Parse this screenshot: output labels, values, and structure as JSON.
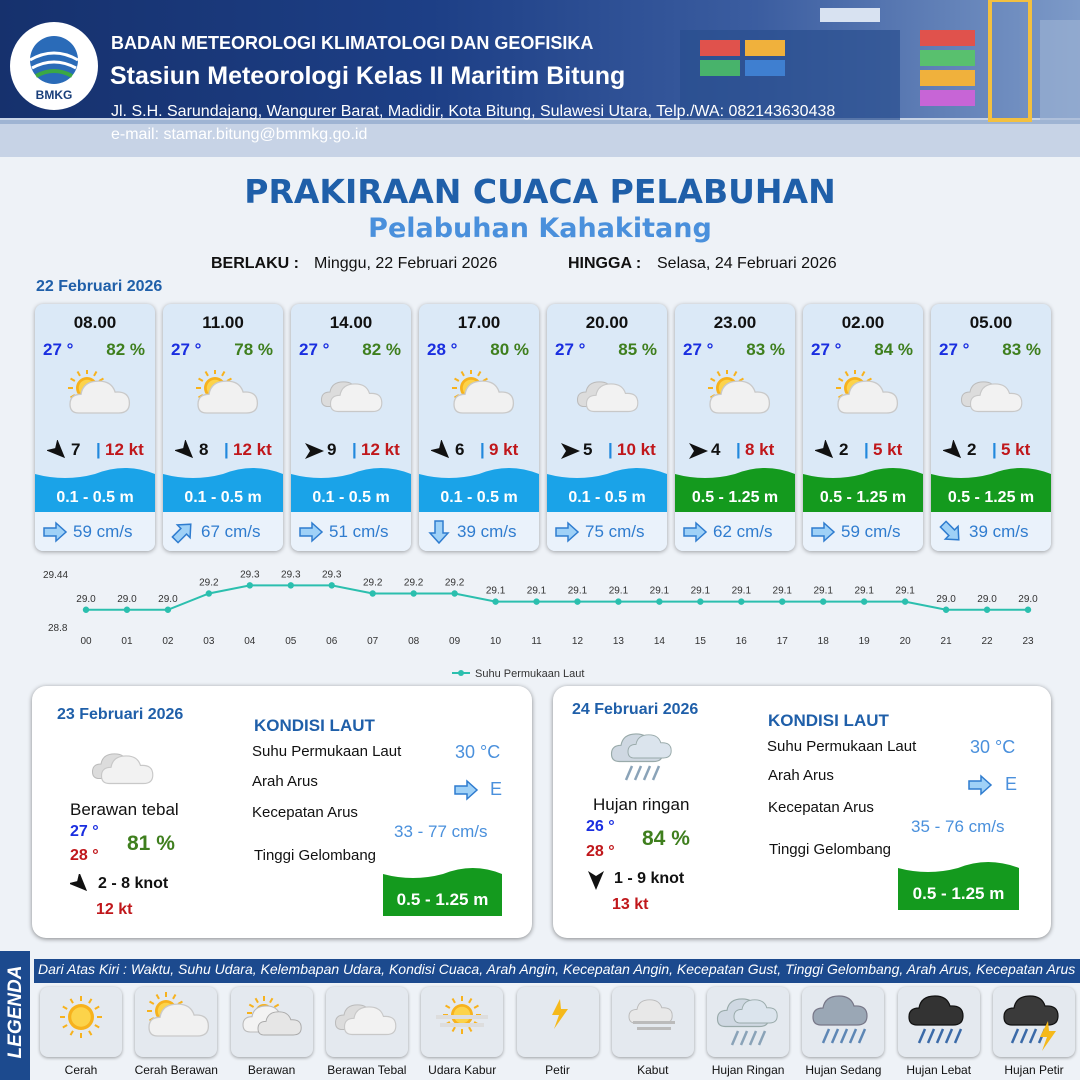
{
  "header": {
    "org": "BADAN METEOROLOGI KLIMATOLOGI DAN GEOFISIKA",
    "station": "Stasiun Meteorologi Kelas II Maritim Bitung",
    "address": "Jl. S.H. Sarundajang, Wangurer Barat, Madidir, Kota Bitung, Sulawesi Utara, Telp./WA: 082143630438",
    "email": "e-mail: stamar.bitung@bmmkg.go.id",
    "logo_text": "BMKG"
  },
  "title": "PRAKIRAAN CUACA PELABUHAN",
  "subtitle": "Pelabuhan Kahakitang",
  "validity": {
    "from_label": "BERLAKU :",
    "from_value": "Minggu, 22 Februari 2026",
    "to_label": "HINGGA :",
    "to_value": "Selasa, 24 Februari 2026"
  },
  "day1_label": "22 Februari 2026",
  "forecasts": [
    {
      "time": "08.00",
      "temp": "27 °",
      "rh": "82 %",
      "cond": "cerah-berawan",
      "wdir": "NW",
      "wspeed": "7",
      "gust": "12 kt",
      "wave": "0.1 - 0.5 m",
      "wave_level": "low",
      "cdir": "E",
      "cspeed": "59 cm/s"
    },
    {
      "time": "11.00",
      "temp": "27 °",
      "rh": "78 %",
      "cond": "cerah-berawan",
      "wdir": "NW",
      "wspeed": "8",
      "gust": "12 kt",
      "wave": "0.1 - 0.5 m",
      "wave_level": "low",
      "cdir": "NE",
      "cspeed": "67 cm/s"
    },
    {
      "time": "14.00",
      "temp": "27 °",
      "rh": "82 %",
      "cond": "berawan-tebal",
      "wdir": "W",
      "wspeed": "9",
      "gust": "12 kt",
      "wave": "0.1 - 0.5 m",
      "wave_level": "low",
      "cdir": "E",
      "cspeed": "51 cm/s"
    },
    {
      "time": "17.00",
      "temp": "28 °",
      "rh": "80 %",
      "cond": "cerah-berawan",
      "wdir": "NW",
      "wspeed": "6",
      "gust": "9 kt",
      "wave": "0.1 - 0.5 m",
      "wave_level": "low",
      "cdir": "S",
      "cspeed": "39 cm/s"
    },
    {
      "time": "20.00",
      "temp": "27 °",
      "rh": "85 %",
      "cond": "berawan-tebal",
      "wdir": "W",
      "wspeed": "5",
      "gust": "10 kt",
      "wave": "0.1 - 0.5 m",
      "wave_level": "low",
      "cdir": "E",
      "cspeed": "75 cm/s"
    },
    {
      "time": "23.00",
      "temp": "27 °",
      "rh": "83 %",
      "cond": "cerah-berawan",
      "wdir": "W",
      "wspeed": "4",
      "gust": "8 kt",
      "wave": "0.5 - 1.25 m",
      "wave_level": "moderate",
      "cdir": "E",
      "cspeed": "62 cm/s"
    },
    {
      "time": "02.00",
      "temp": "27 °",
      "rh": "84 %",
      "cond": "cerah-berawan",
      "wdir": "NW",
      "wspeed": "2",
      "gust": "5 kt",
      "wave": "0.5 - 1.25 m",
      "wave_level": "moderate",
      "cdir": "E",
      "cspeed": "59 cm/s"
    },
    {
      "time": "05.00",
      "temp": "27 °",
      "rh": "83 %",
      "cond": "berawan-tebal",
      "wdir": "NW",
      "wspeed": "2",
      "gust": "5 kt",
      "wave": "0.5 - 1.25 m",
      "wave_level": "moderate",
      "cdir": "SE",
      "cspeed": "39 cm/s"
    }
  ],
  "colors": {
    "wave_low": "#1aa3e8",
    "wave_moderate": "#149a1e",
    "title": "#1f5fa9",
    "subtitle": "#4a90dc",
    "speed": "#2f7ccf"
  },
  "chart_data": {
    "type": "line",
    "x": [
      "00",
      "01",
      "02",
      "03",
      "04",
      "05",
      "06",
      "07",
      "08",
      "09",
      "10",
      "11",
      "12",
      "13",
      "14",
      "15",
      "16",
      "17",
      "18",
      "19",
      "20",
      "21",
      "22",
      "23"
    ],
    "series": [
      {
        "name": "Suhu Permukaan Laut",
        "values": [
          29.0,
          29.0,
          29.0,
          29.2,
          29.3,
          29.3,
          29.3,
          29.2,
          29.2,
          29.2,
          29.1,
          29.1,
          29.1,
          29.1,
          29.1,
          29.1,
          29.1,
          29.1,
          29.1,
          29.1,
          29.1,
          29.0,
          29.0,
          29.0
        ]
      }
    ],
    "y_ticks": [
      "29.44",
      "28.8"
    ],
    "ylim": [
      28.8,
      29.44
    ],
    "color": "#2bbfae",
    "legend": "bottom-center"
  },
  "days": [
    {
      "date": "23 Februari 2026",
      "cond_label": "Berawan tebal",
      "cond": "berawan-tebal",
      "tmin": "27 °",
      "tmax": "28 °",
      "rh": "81 %",
      "wdir": "NW",
      "wind": "2  - 8 knot",
      "gust": "12 kt",
      "sea_title": "KONDISI LAUT",
      "sst_label": "Suhu Permukaan Laut",
      "sst": "30 °C",
      "cdir_label": "Arah Arus",
      "cdir": "E",
      "cspd_label": "Kecepatan Arus",
      "cspd": "33 - 77 cm/s",
      "wave_label": "Tinggi Gelombang",
      "wave": "0.5 - 1.25 m"
    },
    {
      "date": "24 Februari 2026",
      "cond_label": "Hujan ringan",
      "cond": "hujan-ringan",
      "tmin": "26 °",
      "tmax": "28 °",
      "rh": "84 %",
      "wdir": "N",
      "wind": "1  - 9 knot",
      "gust": "13 kt",
      "sea_title": "KONDISI LAUT",
      "sst_label": "Suhu Permukaan Laut",
      "sst": "30 °C",
      "cdir_label": "Arah Arus",
      "cdir": "E",
      "cspd_label": "Kecepatan Arus",
      "cspd": "35 - 76 cm/s",
      "wave_label": "Tinggi Gelombang",
      "wave": "0.5 - 1.25 m"
    }
  ],
  "legend": {
    "title": "LEGENDA",
    "text": "Dari Atas Kiri : Waktu, Suhu Udara, Kelembapan Udara, Kondisi Cuaca, Arah Angin, Kecepatan Angin, Kecepatan Gust, Tinggi Gelombang, Arah Arus, Kecepatan Arus",
    "items": [
      {
        "label": "Cerah",
        "icon": "cerah"
      },
      {
        "label": "Cerah Berawan",
        "icon": "cerah-berawan"
      },
      {
        "label": "Berawan",
        "icon": "berawan"
      },
      {
        "label": "Berawan Tebal",
        "icon": "berawan-tebal"
      },
      {
        "label": "Udara Kabur",
        "icon": "udara-kabur"
      },
      {
        "label": "Petir",
        "icon": "petir"
      },
      {
        "label": "Kabut",
        "icon": "kabut"
      },
      {
        "label": "Hujan Ringan",
        "icon": "hujan-ringan"
      },
      {
        "label": "Hujan Sedang",
        "icon": "hujan-sedang"
      },
      {
        "label": "Hujan Lebat",
        "icon": "hujan-lebat"
      },
      {
        "label": "Hujan Petir",
        "icon": "hujan-petir"
      }
    ]
  }
}
